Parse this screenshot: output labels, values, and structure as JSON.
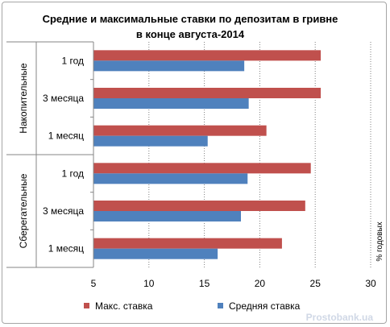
{
  "chart_data": {
    "type": "bar",
    "orientation": "horizontal",
    "title_line1": "Средние и максимальные ставки по депозитам в гривне",
    "title_line2": "в конце августа-2014",
    "ylabel": "% годовых",
    "xlim": [
      5,
      30
    ],
    "xticks": [
      "5",
      "10",
      "15",
      "20",
      "25",
      "30"
    ],
    "grid": "vertical dotted",
    "legend_position": "bottom",
    "groups": [
      {
        "name": "Накопительные",
        "categories": [
          "1 год",
          "3 месяца",
          "1 месяц"
        ]
      },
      {
        "name": "Сберегательные",
        "categories": [
          "1 год",
          "3 месяца",
          "1 месяц"
        ]
      }
    ],
    "series": [
      {
        "name": "Макс. ставка",
        "color": "#c0504d",
        "values": [
          25.5,
          25.5,
          20.6,
          24.6,
          24.1,
          22.0
        ]
      },
      {
        "name": "Средняя ставка",
        "color": "#4f81bd",
        "values": [
          18.6,
          19.0,
          15.3,
          18.9,
          18.3,
          16.2
        ]
      }
    ]
  },
  "watermark": "Prostobank.ua"
}
